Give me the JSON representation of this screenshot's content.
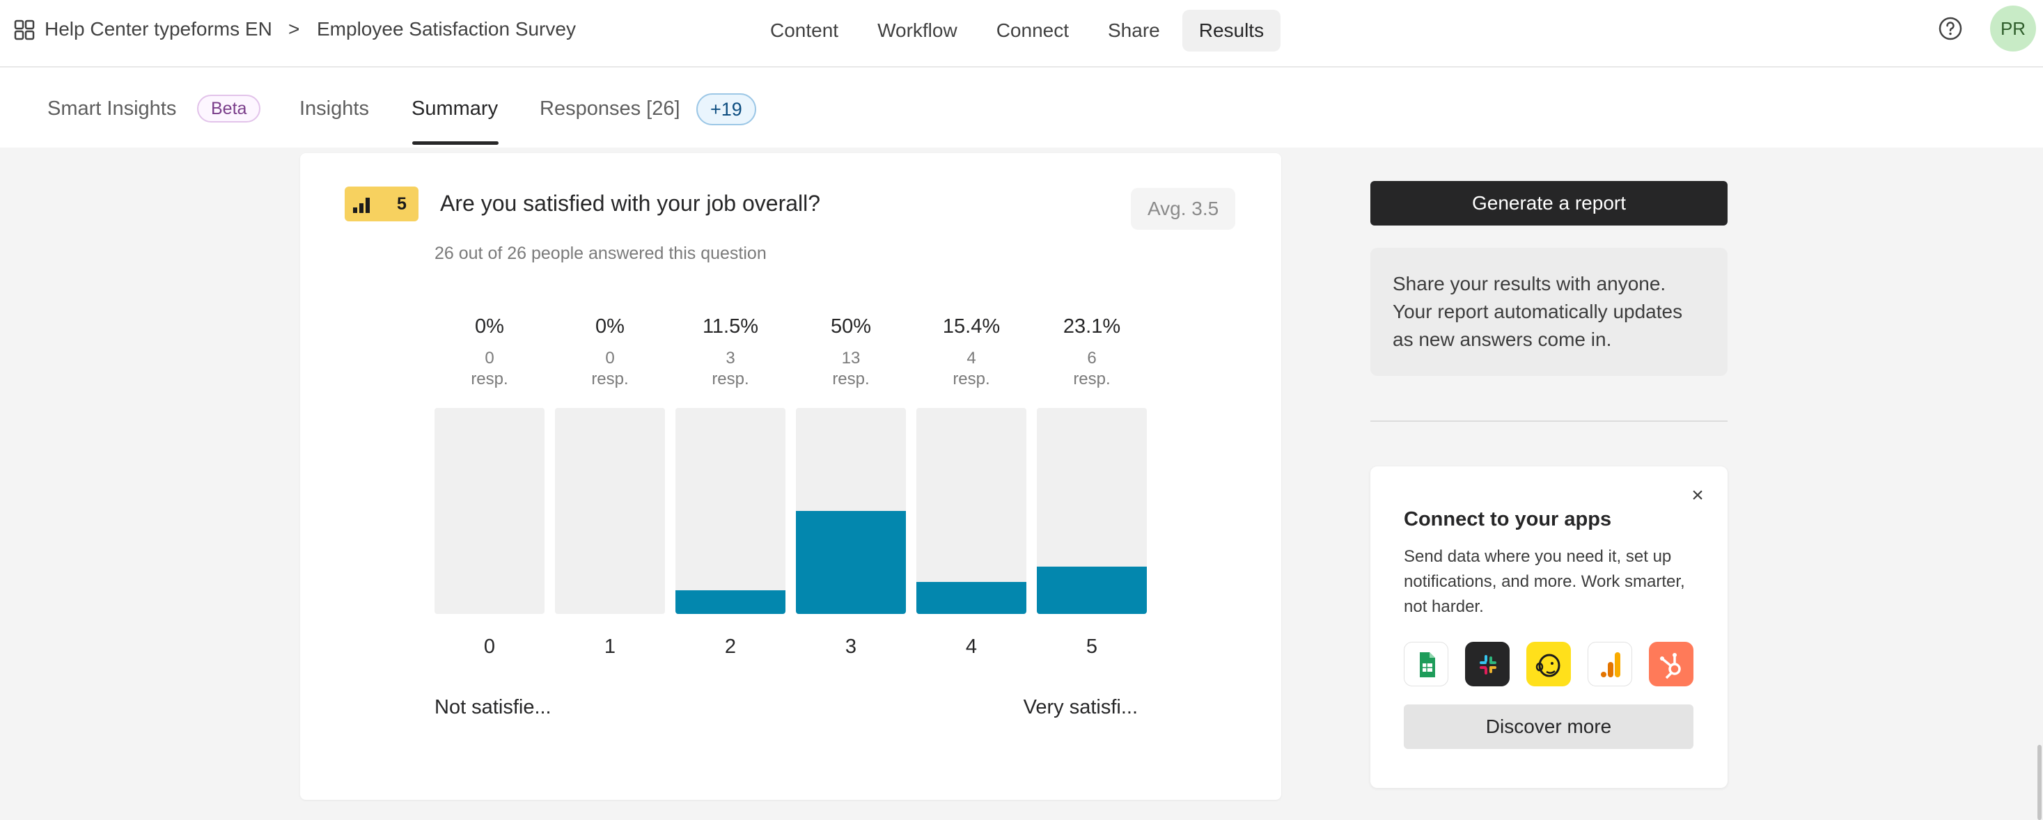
{
  "header": {
    "workspace": "Help Center typeforms EN",
    "separator": ">",
    "form_title": "Employee Satisfaction Survey",
    "nav": [
      "Content",
      "Workflow",
      "Connect",
      "Share",
      "Results"
    ],
    "active_nav": "Results",
    "avatar_initials": "PR",
    "icons": {
      "apps": "grid-icon",
      "help": "question-circle-icon"
    }
  },
  "subtabs": {
    "smart_insights": "Smart Insights",
    "beta": "Beta",
    "insights": "Insights",
    "summary": "Summary",
    "responses": "Responses [26]",
    "new_count": "+19",
    "active": "Summary"
  },
  "question": {
    "number": "5",
    "icon": "bar-chart-icon",
    "title": "Are you satisfied with your job overall?",
    "answered": "26 out of 26 people answered this question",
    "average": "Avg. 3.5",
    "resp_unit": "resp.",
    "low_label": "Not satisfie...",
    "high_label": "Very satisfi..."
  },
  "chart_data": {
    "type": "bar",
    "categories": [
      "0",
      "1",
      "2",
      "3",
      "4",
      "5"
    ],
    "values": [
      0,
      0,
      3,
      13,
      4,
      6
    ],
    "percent_labels": [
      "0%",
      "0%",
      "11.5%",
      "50%",
      "15.4%",
      "23.1%"
    ],
    "fill_fraction": [
      0,
      0,
      0.115,
      0.5,
      0.154,
      0.231
    ],
    "bar_color": "#0387ae",
    "track_color": "#f0f0f0"
  },
  "sidebar": {
    "generate_report": "Generate a report",
    "share_text": "Share your results with anyone. Your report automatically updates as new answers come in.",
    "connect": {
      "title": "Connect to your apps",
      "description": "Send data where you need it, set up notifications, and more. Work smarter, not harder.",
      "apps": [
        "google-sheets-icon",
        "slack-icon",
        "mailchimp-icon",
        "google-analytics-icon",
        "hubspot-icon"
      ],
      "discover": "Discover more",
      "close": "×"
    }
  }
}
